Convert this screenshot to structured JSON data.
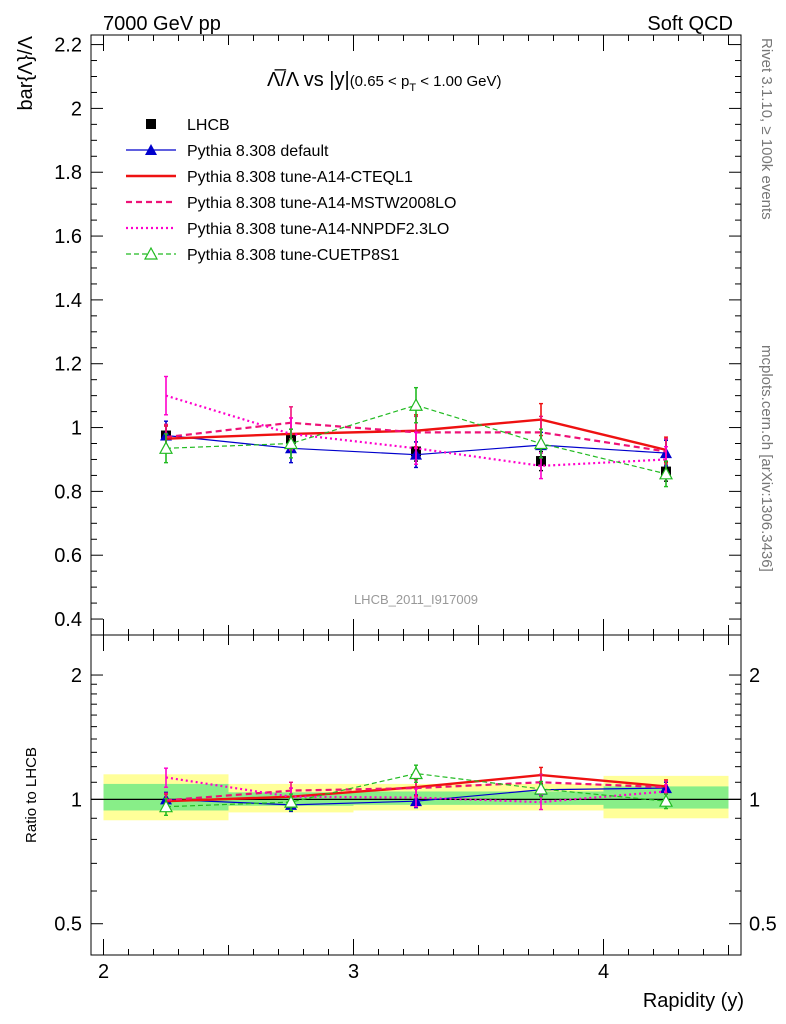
{
  "header": {
    "left": "7000 GeV pp",
    "right": "Soft QCD",
    "side_rivet": "Rivet 3.1.10, ≥ 100k events",
    "side_mcplots": "mcplots.cern.ch [arXiv:1306.3436]",
    "analysis_id": "LHCB_2011_I917009"
  },
  "plot_title": {
    "main": "Λ̅/Λ vs |y|",
    "cut_prefix": "(0.65 < p",
    "cut_sub": "T",
    "cut_suffix": " < 1.00 GeV)"
  },
  "colors": {
    "data": "#000000",
    "default": "#0000cc",
    "cteql1": "#ee1111",
    "mstw": "#ee1177",
    "nnpdf": "#ff00cc",
    "cuetp8s1": "#22bb22",
    "band_outer": "#ffff99",
    "band_inner": "#88ee88"
  },
  "chart_data": [
    {
      "type": "line",
      "panel": "main",
      "ylabel": "bar{Λ}/Λ",
      "xlim": [
        1.95,
        4.55
      ],
      "ylim": [
        0.35,
        2.23
      ],
      "yticks": [
        0.4,
        0.6,
        0.8,
        1.0,
        1.2,
        1.4,
        1.6,
        1.8,
        2.0,
        2.2
      ],
      "ytick_labels": [
        "0.4",
        "0.6",
        "0.8",
        "1",
        "1.2",
        "1.4",
        "1.6",
        "1.8",
        "2",
        "2.2"
      ],
      "x": [
        2.25,
        2.75,
        3.25,
        3.75,
        4.25
      ],
      "series": [
        {
          "key": "data",
          "name": "LHCB",
          "style": "data",
          "values": [
            0.975,
            0.965,
            0.925,
            0.895,
            0.862
          ],
          "errors": [
            0.03,
            0.03,
            0.03,
            0.03,
            0.03
          ]
        },
        {
          "key": "default",
          "name": "Pythia 8.308 default",
          "style": "solid-triangle",
          "values": [
            0.975,
            0.935,
            0.915,
            0.945,
            0.92
          ],
          "errors": [
            0.045,
            0.045,
            0.04,
            0.04,
            0.04
          ]
        },
        {
          "key": "cteql1",
          "name": "Pythia 8.308 tune-A14-CTEQL1",
          "style": "solid-thick",
          "values": [
            0.965,
            0.98,
            0.99,
            1.025,
            0.93
          ],
          "errors": [
            0.04,
            0.05,
            0.05,
            0.05,
            0.04
          ]
        },
        {
          "key": "mstw",
          "name": "Pythia 8.308 tune-A14-MSTW2008LO",
          "style": "dashed",
          "values": [
            0.97,
            1.015,
            0.985,
            0.985,
            0.925
          ],
          "errors": [
            0.04,
            0.05,
            0.05,
            0.05,
            0.04
          ]
        },
        {
          "key": "nnpdf",
          "name": "Pythia 8.308 tune-A14-NNPDF2.3LO",
          "style": "dotted",
          "values": [
            1.1,
            0.98,
            0.935,
            0.88,
            0.9
          ],
          "errors": [
            0.06,
            0.05,
            0.05,
            0.04,
            0.04
          ]
        },
        {
          "key": "cuetp8s1",
          "name": "Pythia 8.308 tune-CUETP8S1",
          "style": "dashed-open-triangle",
          "values": [
            0.935,
            0.95,
            1.07,
            0.95,
            0.855
          ],
          "errors": [
            0.045,
            0.045,
            0.055,
            0.045,
            0.04
          ]
        }
      ]
    },
    {
      "type": "line",
      "panel": "ratio",
      "ylabel": "Ratio to LHCB",
      "xlabel": "Rapidity (y)",
      "xlim": [
        1.95,
        4.55
      ],
      "xticks": [
        2,
        3,
        4
      ],
      "xtick_labels": [
        "2",
        "3",
        "4"
      ],
      "yscale": "log",
      "ylim": [
        0.42,
        2.5
      ],
      "yticks": [
        0.5,
        1,
        2
      ],
      "ytick_labels": [
        "0.5",
        "1",
        "2"
      ],
      "x": [
        2.25,
        2.75,
        3.25,
        3.75,
        4.25
      ],
      "bands": [
        {
          "xmin": 2.0,
          "xmax": 2.5,
          "outer": [
            0.89,
            1.15
          ],
          "inner": [
            0.94,
            1.09
          ]
        },
        {
          "xmin": 2.5,
          "xmax": 3.0,
          "outer": [
            0.93,
            1.09
          ],
          "inner": [
            0.965,
            1.04
          ]
        },
        {
          "xmin": 3.0,
          "xmax": 3.5,
          "outer": [
            0.94,
            1.09
          ],
          "inner": [
            0.97,
            1.045
          ]
        },
        {
          "xmin": 3.5,
          "xmax": 4.0,
          "outer": [
            0.94,
            1.09
          ],
          "inner": [
            0.97,
            1.045
          ]
        },
        {
          "xmin": 4.0,
          "xmax": 4.5,
          "outer": [
            0.9,
            1.14
          ],
          "inner": [
            0.95,
            1.075
          ]
        }
      ],
      "series": [
        {
          "key": "default",
          "style": "solid-triangle",
          "values": [
            1.0,
            0.97,
            0.99,
            1.055,
            1.065
          ],
          "errors": [
            0.04,
            0.035,
            0.035,
            0.035,
            0.035
          ]
        },
        {
          "key": "cteql1",
          "style": "solid-thick",
          "values": [
            0.99,
            1.015,
            1.07,
            1.145,
            1.075
          ],
          "errors": [
            0.04,
            0.05,
            0.05,
            0.05,
            0.04
          ]
        },
        {
          "key": "mstw",
          "style": "dashed",
          "values": [
            0.995,
            1.05,
            1.065,
            1.1,
            1.07
          ],
          "errors": [
            0.04,
            0.05,
            0.05,
            0.05,
            0.04
          ]
        },
        {
          "key": "nnpdf",
          "style": "dotted",
          "values": [
            1.13,
            1.015,
            1.01,
            0.985,
            1.045
          ],
          "errors": [
            0.06,
            0.05,
            0.05,
            0.04,
            0.04
          ]
        },
        {
          "key": "cuetp8s1",
          "style": "dashed-open-triangle",
          "values": [
            0.96,
            0.985,
            1.155,
            1.06,
            0.99
          ],
          "errors": [
            0.045,
            0.045,
            0.055,
            0.045,
            0.04
          ]
        }
      ]
    }
  ]
}
